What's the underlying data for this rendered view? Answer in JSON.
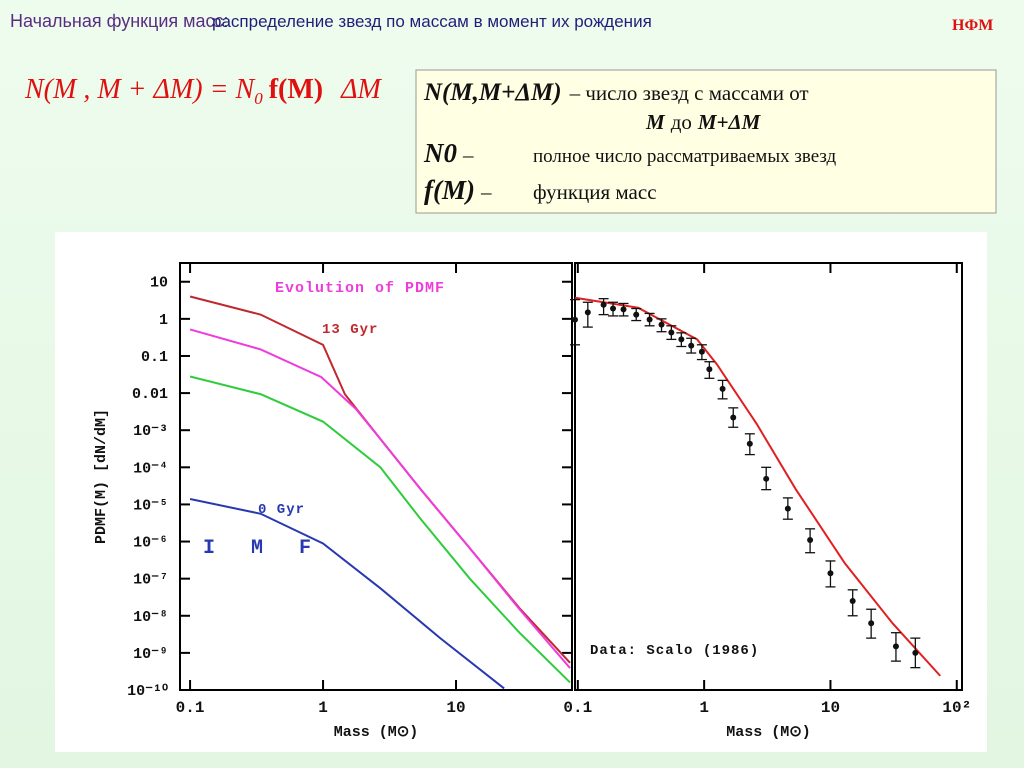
{
  "slide": {
    "title_main": "Начальная функция масс:",
    "title_rest": "распределение звезд по массам в момент их рождения",
    "tag": "НФМ",
    "formula": [
      "N(M , M + ΔM) = N",
      "0",
      "f(M)",
      "ΔM"
    ],
    "box": {
      "line1": [
        "N(M,M+ΔM)",
        "– число звезд с массами от"
      ],
      "line2": [
        "M",
        "до",
        "M+ΔM"
      ],
      "line3": [
        "N0",
        "–",
        "полное число рассматриваемых звезд"
      ],
      "line4": [
        "f(M)",
        "–",
        "функция масс"
      ]
    }
  },
  "chart_data": [
    {
      "type": "line",
      "xlabel": "Mass (M⊙)",
      "ylabel": "PDMF(M) [dN/dM]",
      "xscale": "log",
      "yscale": "log",
      "xlim": [
        0.084,
        74.5
      ],
      "ylim": [
        1e-10,
        32
      ],
      "xticks": [
        0.1,
        1,
        10
      ],
      "yticks": [
        10,
        1,
        0.1,
        0.01,
        {
          "value": 0.001,
          "label": "10⁻³"
        },
        {
          "value": 0.0001,
          "label": "10⁻⁴"
        },
        {
          "value": 1e-05,
          "label": "10⁻⁵"
        },
        {
          "value": 1e-06,
          "label": "10⁻⁶"
        },
        {
          "value": 1e-07,
          "label": "10⁻⁷"
        },
        {
          "value": 1e-08,
          "label": "10⁻⁸"
        },
        {
          "value": 1e-09,
          "label": "10⁻⁹"
        },
        {
          "value": 1e-10,
          "label": "10⁻¹⁰"
        }
      ],
      "series": [
        {
          "color": "#c0282d",
          "x": [
            0.1,
            0.34,
            1,
            1.46,
            2.7,
            5.4,
            12.7,
            30,
            72
          ],
          "values": [
            4.0,
            1.3,
            0.2,
            0.0093,
            0.00058,
            2.6e-05,
            6.6e-07,
            1.6e-08,
            5.4e-10
          ]
        },
        {
          "color": "#ee3cdc",
          "x": [
            0.1,
            0.34,
            0.97,
            1.77,
            2.7,
            5.4,
            12.7,
            30,
            72
          ],
          "values": [
            0.52,
            0.15,
            0.027,
            0.0037,
            0.00058,
            2.6e-05,
            6.6e-07,
            1.5e-08,
            3.9e-10
          ]
        },
        {
          "color": "#2ecc3a",
          "x": [
            0.1,
            0.34,
            1,
            2.7,
            5.4,
            12.7,
            30,
            72
          ],
          "values": [
            0.028,
            0.0093,
            0.0017,
            0.0001,
            4.1e-06,
            1e-07,
            3.5e-09,
            1.6e-10
          ]
        },
        {
          "color": "#2838b0",
          "x": [
            0.1,
            0.34,
            1,
            2.7,
            7.6,
            23
          ],
          "values": [
            1.4e-05,
            5.6e-06,
            8.9e-07,
            5.5e-08,
            2.5e-09,
            1.1e-10
          ]
        }
      ],
      "annotations": [
        {
          "text": "Evolution of PDMF",
          "color": "#ee3cdc"
        },
        {
          "text": "13 Gyr",
          "color": "#c0282d"
        },
        {
          "text": "0 Gyr",
          "color": "#2838b0"
        },
        {
          "text": "I M F",
          "color": "#2838b0"
        }
      ]
    },
    {
      "type": "scatter",
      "xlabel": "Mass (M⊙)",
      "xscale": "log",
      "yscale": "log",
      "xlim": [
        0.095,
        110
      ],
      "ylim": [
        1e-10,
        32
      ],
      "xticks": [
        0.1,
        1,
        10,
        {
          "value": 100,
          "label": "10²"
        }
      ],
      "color": "#111111",
      "x": [
        0.095,
        0.12,
        0.16,
        0.19,
        0.23,
        0.29,
        0.37,
        0.46,
        0.55,
        0.66,
        0.79,
        0.96,
        1.1,
        1.4,
        1.7,
        2.3,
        3.1,
        4.6,
        6.9,
        10,
        15,
        21,
        33,
        47
      ],
      "values": [
        0.95,
        1.5,
        2.4,
        1.9,
        1.8,
        1.3,
        0.96,
        0.7,
        0.43,
        0.28,
        0.19,
        0.13,
        0.044,
        0.013,
        0.0022,
        0.00043,
        4.9e-05,
        7.7e-06,
        1.1e-06,
        1.4e-07,
        2.5e-08,
        6.3e-09,
        1.5e-09,
        1e-09
      ],
      "lower": [
        0.2,
        0.6,
        1.3,
        1.2,
        1.2,
        0.9,
        0.65,
        0.45,
        0.28,
        0.18,
        0.12,
        0.08,
        0.025,
        0.007,
        0.0012,
        0.00022,
        2.5e-05,
        4e-06,
        5e-07,
        6e-08,
        1e-08,
        2.5e-09,
        6e-10,
        4e-10
      ],
      "upper": [
        3.3,
        2.8,
        3.5,
        2.8,
        2.6,
        1.9,
        1.4,
        1.0,
        0.65,
        0.42,
        0.3,
        0.2,
        0.07,
        0.022,
        0.004,
        0.0008,
        0.0001,
        1.5e-05,
        2.2e-06,
        3e-07,
        5e-08,
        1.5e-08,
        3.5e-09,
        2.5e-09
      ],
      "fit": {
        "color": "#e02020",
        "x": [
          0.095,
          0.3,
          0.88,
          1.26,
          2.6,
          5.3,
          13,
          31,
          74
        ],
        "values": [
          3.7,
          2.0,
          0.28,
          0.06,
          0.0015,
          2.6e-05,
          2.6e-07,
          6.3e-09,
          2.4e-10
        ]
      },
      "annotations": [
        {
          "text": "Data: Scalo (1986)",
          "color": "#111111"
        }
      ]
    }
  ]
}
